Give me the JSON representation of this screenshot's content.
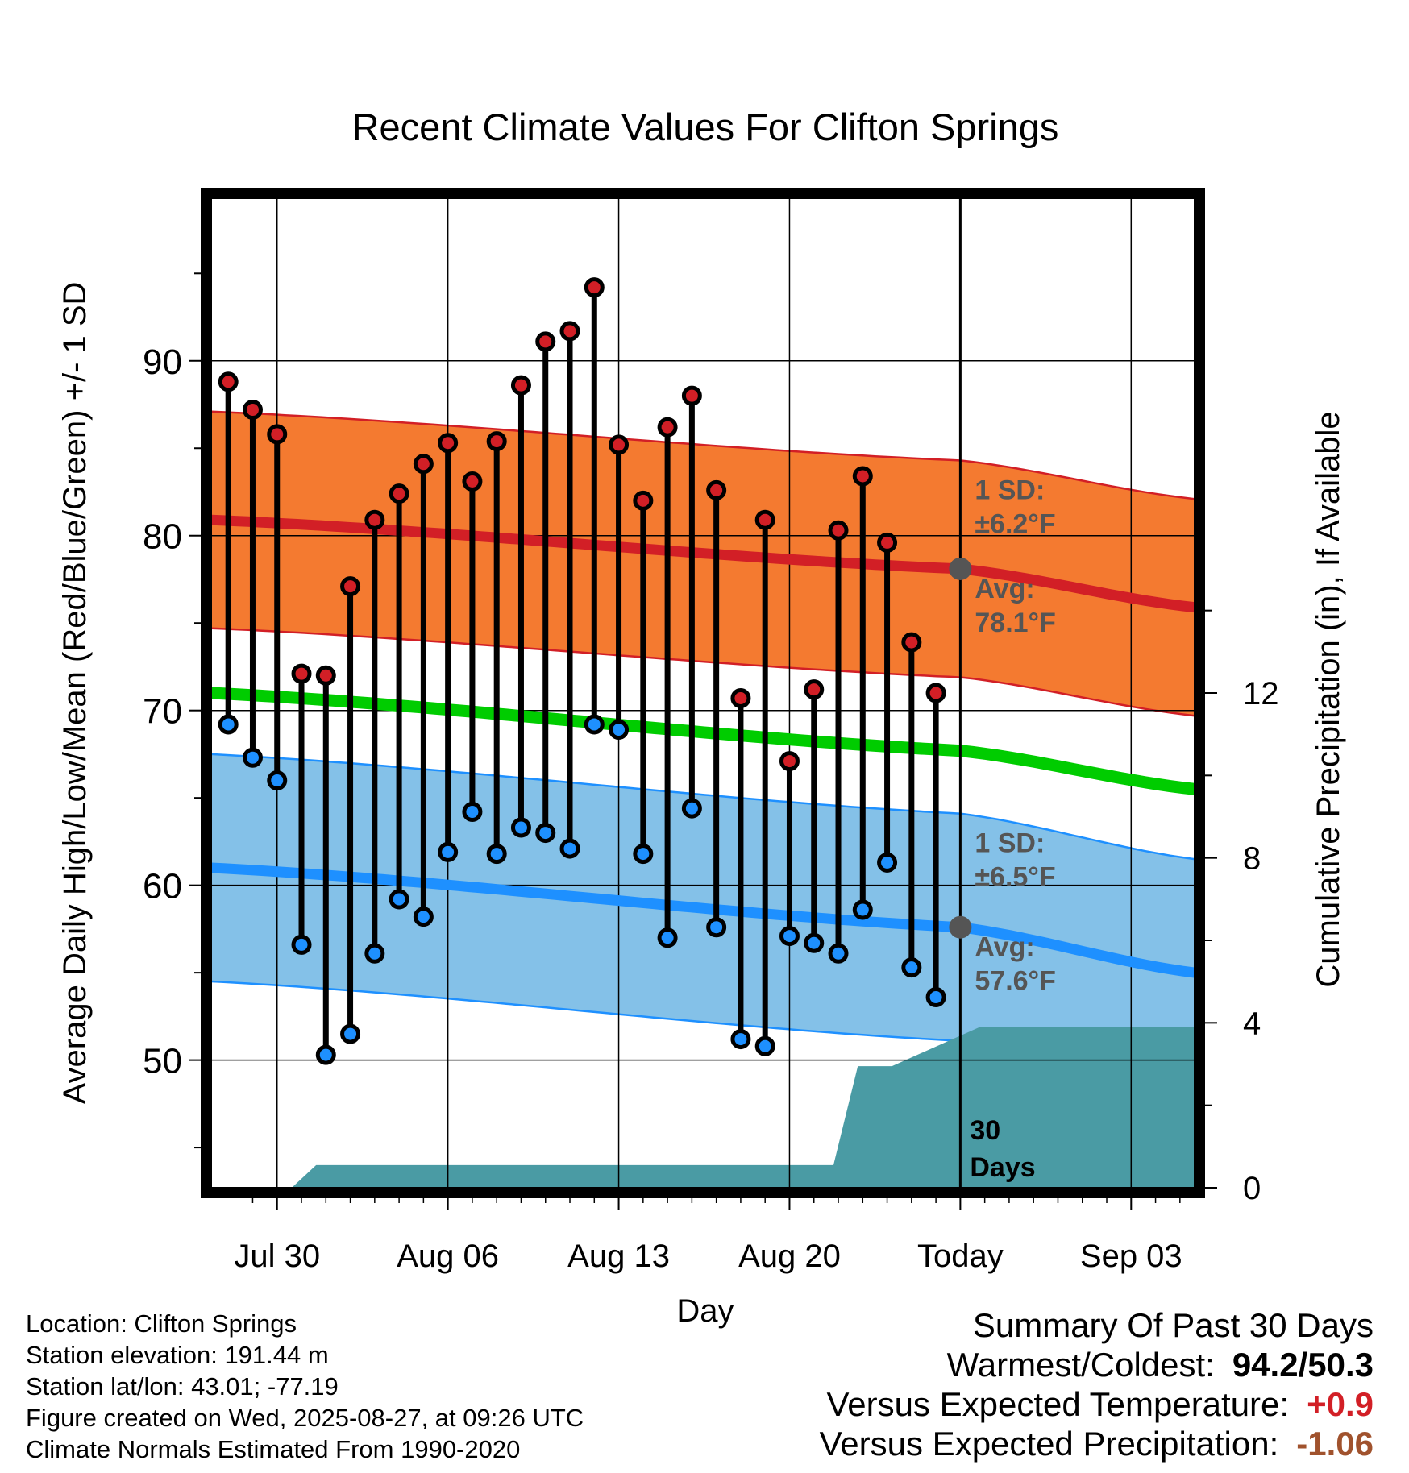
{
  "chart_data": {
    "type": "line",
    "title": "Recent Climate Values For Clifton Springs",
    "xlabel": "Day",
    "ylabel": "Average Daily High/Low/Mean (Red/Blue/Green) +/- 1 SD",
    "y2label": "Cumulative Precipitation (in), If Available",
    "ylim": [
      42.7,
      99.3
    ],
    "y_ticks": [
      50,
      60,
      70,
      80,
      90
    ],
    "y2lim": [
      0,
      24
    ],
    "y2_ticks": [
      0,
      4,
      8,
      12
    ],
    "x_ticks": [
      "Jul 30",
      "Aug 06",
      "Aug 13",
      "Aug 20",
      "Today",
      "Sep 03"
    ],
    "x_tick_days": [
      0,
      7,
      14,
      21,
      28,
      35
    ],
    "xlim": [
      -2.7,
      37.6
    ],
    "grid": true,
    "today_day": 28,
    "today_label": [
      "30",
      "Days"
    ],
    "days": [
      -2,
      -1,
      0,
      1,
      2,
      3,
      4,
      5,
      6,
      7,
      8,
      9,
      10,
      11,
      12,
      13,
      14,
      15,
      16,
      17,
      18,
      19,
      20,
      21,
      22,
      23,
      24,
      25,
      26,
      27
    ],
    "series": [
      {
        "name": "High",
        "color": "#d21f26",
        "values": [
          88.8,
          87.2,
          85.8,
          72.1,
          72.0,
          77.1,
          80.9,
          82.4,
          84.1,
          85.3,
          83.1,
          85.4,
          88.6,
          91.1,
          91.7,
          94.2,
          85.2,
          82.0,
          86.2,
          88.0,
          82.6,
          70.7,
          80.9,
          67.1,
          71.2,
          80.3,
          83.4,
          79.6,
          73.9,
          71.0
        ]
      },
      {
        "name": "Low",
        "color": "#1e90ff",
        "values": [
          69.2,
          67.3,
          66.0,
          56.6,
          50.3,
          51.5,
          56.1,
          59.2,
          58.2,
          61.9,
          64.2,
          61.8,
          63.3,
          63.0,
          62.1,
          69.2,
          68.9,
          61.8,
          57.0,
          64.4,
          57.6,
          51.2,
          50.8,
          57.1,
          56.7,
          56.1,
          58.6,
          61.3,
          55.3,
          53.6
        ]
      }
    ],
    "normals": {
      "high_avg": [
        80.9,
        78.1,
        75.9
      ],
      "high_sd": 6.2,
      "low_avg": [
        61.0,
        57.6,
        55.0
      ],
      "low_sd": 6.5,
      "mean_avg": [
        71.0,
        67.7,
        65.5
      ],
      "avg_days": [
        -2.7,
        28,
        37.6
      ]
    },
    "precip_cumulative": {
      "days": [
        -2.7,
        0.6,
        1.6,
        22.8,
        23.8,
        25.2,
        28.8,
        37.6
      ],
      "values": [
        0,
        0,
        0.55,
        0.55,
        2.95,
        2.95,
        3.9,
        3.9
      ]
    },
    "annotations": {
      "high_sd_label": [
        "1 SD:",
        "±6.2°F"
      ],
      "high_avg_label": [
        "Avg:",
        "78.1°F"
      ],
      "low_sd_label": [
        "1 SD:",
        "±6.5°F"
      ],
      "low_avg_label": [
        "Avg:",
        "57.6°F"
      ]
    },
    "colors": {
      "high_band": "#f47a30",
      "high_line": "#d21f26",
      "low_band": "#84c1e8",
      "low_line": "#1e90ff",
      "mean_line": "#00cc00",
      "precip": "#4a9ba4",
      "annotation_text": "#555555"
    }
  },
  "footer": {
    "lines": [
      "Location: Clifton Springs",
      "Station elevation: 191.44 m",
      "Station lat/lon: 43.01; -77.19",
      "Figure created on Wed, 2025-08-27, at 09:26 UTC",
      "Climate Normals Estimated From 1990-2020"
    ]
  },
  "summary": {
    "heading": "Summary Of Past 30 Days",
    "warmest_coldest_label": "Warmest/Coldest:",
    "warmest_coldest_value": "94.2/50.3",
    "temp_label": "Versus Expected Temperature:",
    "temp_value": "+0.9",
    "precip_label": "Versus Expected Precipitation:",
    "precip_value": "-1.06"
  }
}
